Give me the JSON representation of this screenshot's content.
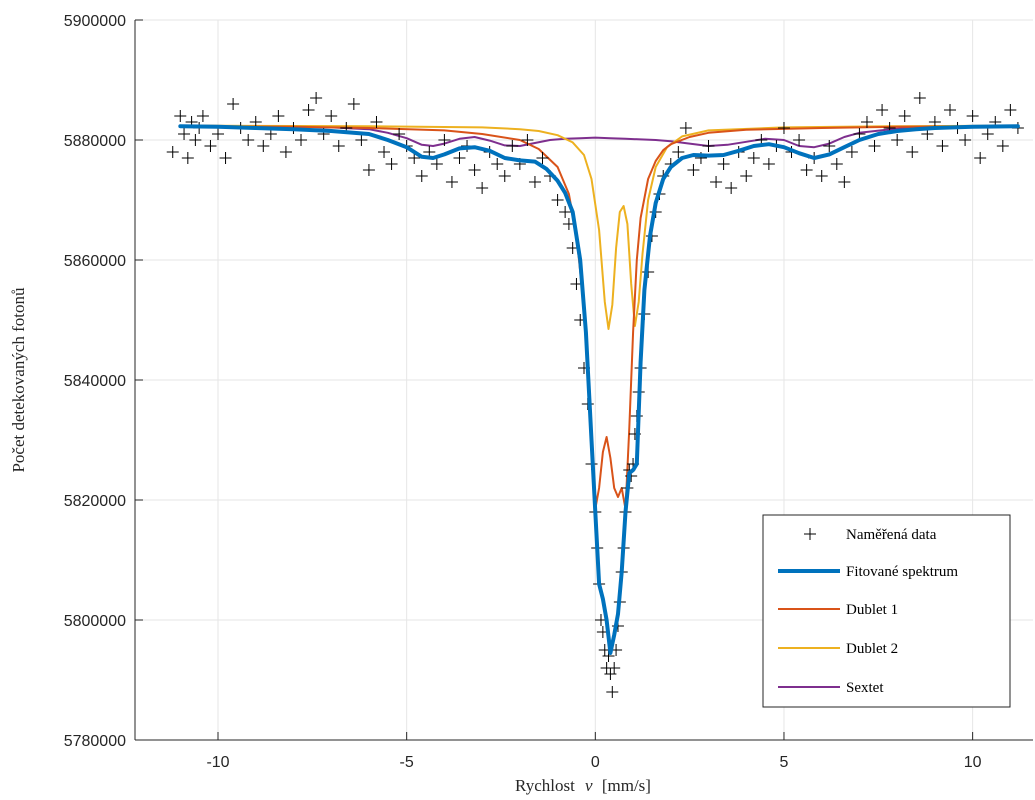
{
  "chart_data": {
    "type": "line",
    "title": "",
    "xlabel_word": "Rychlost",
    "xlabel_symbol": "v",
    "xlabel_unit": "[mm/s]",
    "ylabel": "Počet detekovaných fotonů",
    "xlim": [
      -12.2,
      11.6
    ],
    "ylim": [
      5780000,
      5900000
    ],
    "xticks": [
      -10,
      -5,
      0,
      5,
      10
    ],
    "xtick_labels": [
      "-10",
      "-5",
      "0",
      "5",
      "10"
    ],
    "yticks": [
      5780000,
      5800000,
      5820000,
      5840000,
      5860000,
      5880000,
      5900000
    ],
    "ytick_labels": [
      "5780000",
      "5800000",
      "5820000",
      "5840000",
      "5860000",
      "5880000",
      "5900000"
    ],
    "grid": true,
    "legend_position": "bottom-right",
    "colors": {
      "data": "#000000",
      "fit": "#0072bd",
      "dublet1": "#d95319",
      "dublet2": "#edb120",
      "sextet": "#7e2f8e",
      "grid": "#e6e6e6",
      "axis": "#262626"
    },
    "series": [
      {
        "name": "Naměřená data",
        "kind": "markers",
        "marker": "+",
        "x": [
          -11.2,
          -11.0,
          -10.9,
          -10.8,
          -10.7,
          -10.6,
          -10.5,
          -10.4,
          -10.2,
          -10.0,
          -9.8,
          -9.6,
          -9.4,
          -9.2,
          -9.0,
          -8.8,
          -8.6,
          -8.4,
          -8.2,
          -8.0,
          -7.8,
          -7.6,
          -7.4,
          -7.2,
          -7.0,
          -6.8,
          -6.6,
          -6.4,
          -6.2,
          -6.0,
          -5.8,
          -5.6,
          -5.4,
          -5.2,
          -5.0,
          -4.8,
          -4.6,
          -4.4,
          -4.2,
          -4.0,
          -3.8,
          -3.6,
          -3.4,
          -3.2,
          -3.0,
          -2.8,
          -2.6,
          -2.4,
          -2.2,
          -2.0,
          -1.8,
          -1.6,
          -1.4,
          -1.2,
          -1.0,
          -0.8,
          -0.7,
          -0.6,
          -0.5,
          -0.4,
          -0.3,
          -0.2,
          -0.1,
          0.0,
          0.05,
          0.1,
          0.15,
          0.2,
          0.25,
          0.3,
          0.35,
          0.4,
          0.45,
          0.5,
          0.55,
          0.6,
          0.65,
          0.7,
          0.75,
          0.8,
          0.85,
          0.9,
          0.95,
          1.0,
          1.05,
          1.1,
          1.15,
          1.2,
          1.3,
          1.4,
          1.5,
          1.6,
          1.7,
          1.8,
          2.0,
          2.2,
          2.4,
          2.6,
          2.8,
          3.0,
          3.2,
          3.4,
          3.6,
          3.8,
          4.0,
          4.2,
          4.4,
          4.6,
          4.8,
          5.0,
          5.2,
          5.4,
          5.6,
          5.8,
          6.0,
          6.2,
          6.4,
          6.6,
          6.8,
          7.0,
          7.2,
          7.4,
          7.6,
          7.8,
          8.0,
          8.2,
          8.4,
          8.6,
          8.8,
          9.0,
          9.2,
          9.4,
          9.6,
          9.8,
          10.0,
          10.2,
          10.4,
          10.6,
          10.8,
          11.0,
          11.2
        ],
        "y": [
          5878000,
          5884000,
          5881000,
          5877000,
          5883000,
          5880000,
          5882000,
          5884000,
          5879000,
          5881000,
          5877000,
          5886000,
          5882000,
          5880000,
          5883000,
          5879000,
          5881000,
          5884000,
          5878000,
          5882000,
          5880000,
          5885000,
          5887000,
          5881000,
          5884000,
          5879000,
          5882000,
          5886000,
          5880000,
          5875000,
          5883000,
          5878000,
          5876000,
          5881000,
          5879000,
          5877000,
          5874000,
          5878000,
          5876000,
          5880000,
          5873000,
          5877000,
          5879000,
          5875000,
          5872000,
          5878000,
          5876000,
          5874000,
          5879000,
          5876000,
          5880000,
          5873000,
          5877000,
          5874000,
          5870000,
          5868000,
          5866000,
          5862000,
          5856000,
          5850000,
          5842000,
          5836000,
          5826000,
          5818000,
          5812000,
          5806000,
          5800000,
          5798000,
          5795000,
          5792000,
          5794000,
          5791000,
          5788000,
          5792000,
          5795000,
          5799000,
          5803000,
          5808000,
          5812000,
          5818000,
          5822000,
          5825000,
          5824000,
          5826000,
          5831000,
          5834000,
          5838000,
          5842000,
          5851000,
          5858000,
          5864000,
          5868000,
          5871000,
          5874000,
          5876000,
          5878000,
          5882000,
          5875000,
          5877000,
          5879000,
          5873000,
          5876000,
          5872000,
          5878000,
          5874000,
          5877000,
          5880000,
          5876000,
          5879000,
          5882000,
          5878000,
          5880000,
          5875000,
          5877000,
          5874000,
          5879000,
          5876000,
          5873000,
          5878000,
          5881000,
          5883000,
          5879000,
          5885000,
          5882000,
          5880000,
          5884000,
          5878000,
          5887000,
          5881000,
          5883000,
          5879000,
          5885000,
          5882000,
          5880000,
          5884000,
          5877000,
          5881000,
          5883000,
          5879000,
          5885000,
          5882000
        ]
      },
      {
        "name": "Fitované spektrum",
        "kind": "line",
        "x": [
          -11.0,
          -10.0,
          -9.0,
          -8.0,
          -7.0,
          -6.0,
          -5.5,
          -5.0,
          -4.6,
          -4.3,
          -4.0,
          -3.6,
          -3.2,
          -2.8,
          -2.4,
          -2.0,
          -1.6,
          -1.3,
          -1.0,
          -0.8,
          -0.6,
          -0.4,
          -0.25,
          -0.1,
          0.0,
          0.1,
          0.2,
          0.3,
          0.4,
          0.5,
          0.6,
          0.7,
          0.8,
          0.9,
          1.0,
          1.1,
          1.2,
          1.3,
          1.45,
          1.6,
          1.8,
          2.0,
          2.3,
          2.6,
          3.0,
          3.4,
          3.8,
          4.2,
          4.6,
          5.0,
          5.4,
          5.8,
          6.2,
          6.6,
          7.0,
          7.5,
          8.0,
          8.5,
          9.0,
          10.0,
          11.2
        ],
        "y": [
          5882300,
          5882200,
          5882000,
          5881800,
          5881500,
          5881000,
          5880000,
          5878800,
          5877200,
          5877000,
          5877600,
          5878600,
          5878800,
          5878200,
          5877000,
          5876600,
          5876400,
          5875200,
          5873200,
          5871200,
          5868000,
          5860000,
          5848000,
          5830000,
          5818000,
          5806000,
          5803500,
          5800000,
          5794500,
          5797500,
          5801000,
          5808000,
          5818000,
          5824500,
          5825000,
          5826000,
          5843000,
          5855000,
          5864000,
          5869500,
          5873500,
          5875500,
          5877000,
          5877500,
          5877400,
          5877500,
          5878200,
          5879000,
          5879300,
          5878800,
          5877800,
          5877000,
          5877600,
          5878800,
          5880000,
          5881000,
          5881500,
          5881800,
          5882000,
          5882200,
          5882300
        ]
      },
      {
        "name": "Dublet 1",
        "kind": "line",
        "x": [
          -11.0,
          -8.0,
          -6.0,
          -4.0,
          -3.0,
          -2.0,
          -1.5,
          -1.0,
          -0.7,
          -0.5,
          -0.3,
          -0.15,
          0.0,
          0.1,
          0.2,
          0.3,
          0.4,
          0.5,
          0.6,
          0.7,
          0.8,
          0.9,
          1.0,
          1.1,
          1.2,
          1.4,
          1.6,
          1.8,
          2.0,
          2.5,
          3.0,
          4.0,
          6.0,
          8.0,
          11.2
        ],
        "y": [
          5882300,
          5882200,
          5882000,
          5881600,
          5881000,
          5880000,
          5878500,
          5875500,
          5871000,
          5864000,
          5852000,
          5838000,
          5818500,
          5822000,
          5828000,
          5830500,
          5827000,
          5822000,
          5820500,
          5822000,
          5818500,
          5832000,
          5848000,
          5860000,
          5867000,
          5873500,
          5876500,
          5878300,
          5879300,
          5880500,
          5881200,
          5881700,
          5882000,
          5882200,
          5882300
        ]
      },
      {
        "name": "Dublet 2",
        "kind": "line",
        "x": [
          -11.0,
          -6.0,
          -3.0,
          -2.0,
          -1.5,
          -1.0,
          -0.6,
          -0.3,
          -0.1,
          0.1,
          0.25,
          0.35,
          0.45,
          0.55,
          0.65,
          0.75,
          0.85,
          0.95,
          1.05,
          1.15,
          1.25,
          1.4,
          1.6,
          1.9,
          2.3,
          3.0,
          5.0,
          8.0,
          11.2
        ],
        "y": [
          5882400,
          5882300,
          5882100,
          5881800,
          5881500,
          5880800,
          5879600,
          5877500,
          5873500,
          5865000,
          5853000,
          5848500,
          5852500,
          5862000,
          5868000,
          5869000,
          5866000,
          5856000,
          5849000,
          5853000,
          5861000,
          5870000,
          5875500,
          5878800,
          5880600,
          5881600,
          5882100,
          5882300,
          5882400
        ]
      },
      {
        "name": "Sextet",
        "kind": "line",
        "x": [
          -11.0,
          -9.0,
          -7.0,
          -6.0,
          -5.5,
          -5.0,
          -4.6,
          -4.3,
          -4.0,
          -3.6,
          -3.2,
          -2.8,
          -2.4,
          -2.0,
          -1.6,
          -1.2,
          -0.8,
          -0.4,
          0.0,
          0.4,
          0.8,
          1.2,
          1.6,
          2.0,
          2.5,
          3.0,
          3.5,
          4.0,
          4.5,
          5.0,
          5.4,
          5.8,
          6.2,
          6.6,
          7.0,
          8.0,
          9.0,
          11.2
        ],
        "y": [
          5882400,
          5882300,
          5882100,
          5881800,
          5881200,
          5880300,
          5879200,
          5879000,
          5879400,
          5880200,
          5880500,
          5879900,
          5879100,
          5879000,
          5879500,
          5880000,
          5880200,
          5880300,
          5880400,
          5880300,
          5880200,
          5880100,
          5880000,
          5879800,
          5879400,
          5879000,
          5879200,
          5879700,
          5880200,
          5880000,
          5879000,
          5878800,
          5879400,
          5880500,
          5881200,
          5881900,
          5882200,
          5882400
        ]
      }
    ]
  }
}
